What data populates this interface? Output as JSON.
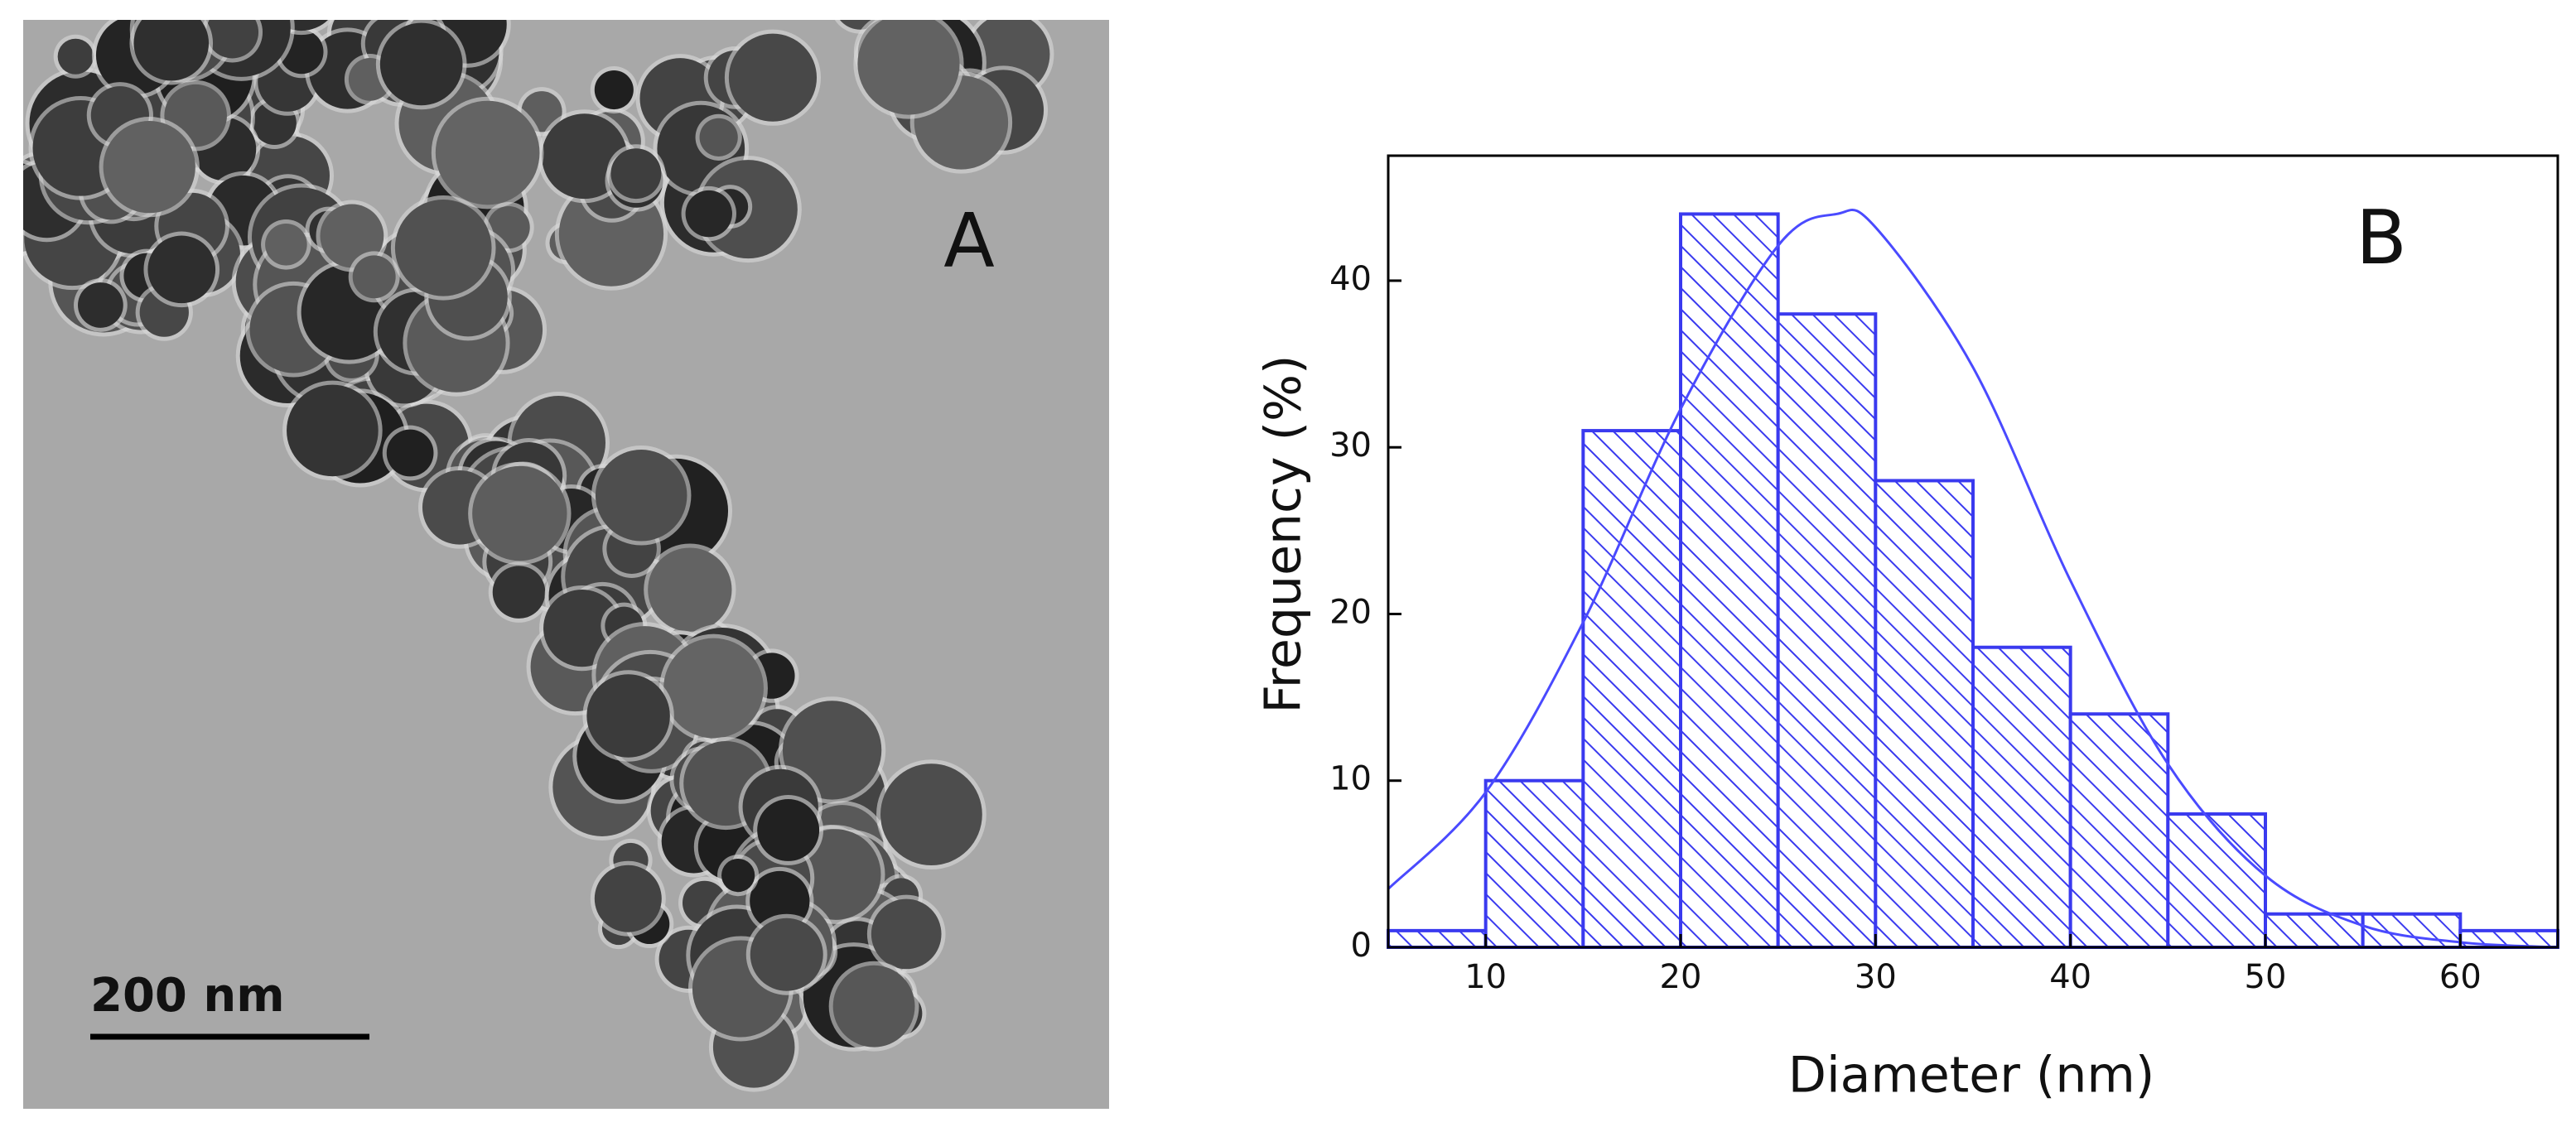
{
  "panel_a": {
    "label": "A",
    "scale_bar": "200 nm"
  },
  "chart_data": {
    "type": "histogram",
    "panel_label": "B",
    "xlabel": "Diameter (nm)",
    "ylabel": "Frequency (%)",
    "bins": [
      5,
      10,
      15,
      20,
      25,
      30,
      35,
      40,
      45,
      50,
      55,
      60,
      65
    ],
    "values": [
      1,
      10,
      31,
      44,
      38,
      28,
      18,
      14,
      8,
      2,
      2,
      1
    ],
    "color": "#3a3aef",
    "xlim": [
      5,
      65
    ],
    "ylim": [
      0,
      47.5
    ],
    "xticks": [
      10,
      20,
      30,
      40,
      50,
      60
    ],
    "yticks": [
      0,
      10,
      20,
      30,
      40
    ],
    "fit": {
      "x": [
        5,
        10,
        15,
        20,
        25,
        28,
        30,
        35,
        40,
        45,
        50,
        55,
        60,
        65
      ],
      "values": [
        3.5,
        9.3,
        19.5,
        32.3,
        42.1,
        44,
        43.2,
        34.8,
        22.0,
        11.0,
        4.3,
        1.3,
        0.3,
        0.0
      ],
      "color": "#4a4aff"
    }
  }
}
